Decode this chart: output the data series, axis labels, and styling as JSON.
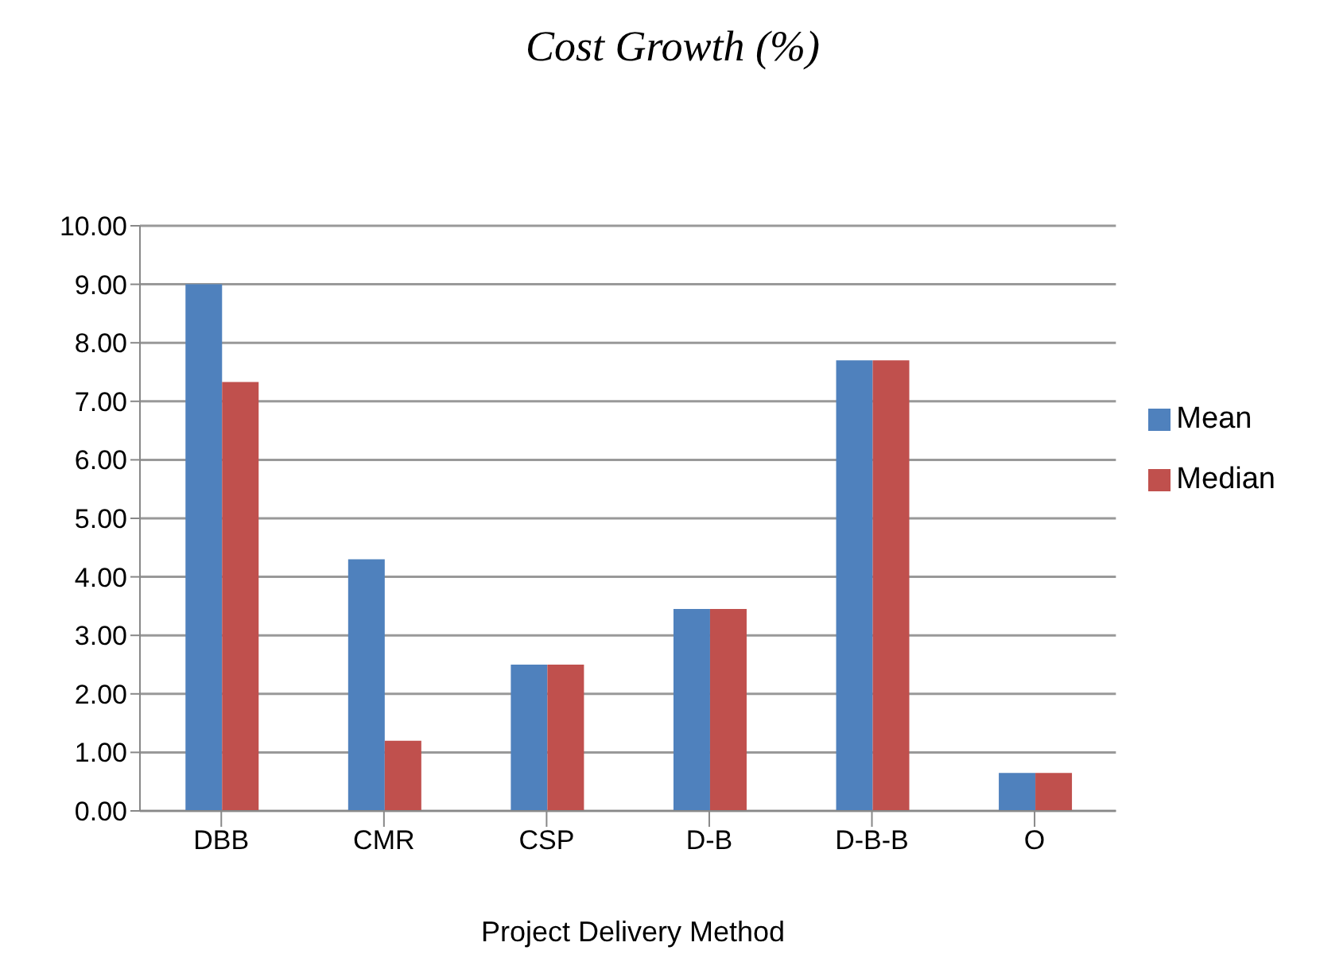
{
  "chart_data": {
    "type": "bar",
    "title": "Cost Growth (%)",
    "xlabel": "Project Delivery Method",
    "categories": [
      "DBB",
      "CMR",
      "CSP",
      "D-B",
      "D-B-B",
      "O"
    ],
    "series": [
      {
        "name": "Mean",
        "color": "#4f81bd",
        "values": [
          9.0,
          4.3,
          2.5,
          3.45,
          7.7,
          0.65
        ]
      },
      {
        "name": "Median",
        "color": "#c0504d",
        "values": [
          7.33,
          1.2,
          2.5,
          3.45,
          7.7,
          0.65
        ]
      }
    ],
    "ylim": [
      0,
      10
    ],
    "yticks": [
      {
        "value": 0,
        "label": "0.00"
      },
      {
        "value": 1,
        "label": "1.00"
      },
      {
        "value": 2,
        "label": "2.00"
      },
      {
        "value": 3,
        "label": "3.00"
      },
      {
        "value": 4,
        "label": "4.00"
      },
      {
        "value": 5,
        "label": "5.00"
      },
      {
        "value": 6,
        "label": "6.00"
      },
      {
        "value": 7,
        "label": "7.00"
      },
      {
        "value": 8,
        "label": "8.00"
      },
      {
        "value": 9,
        "label": "9.00"
      },
      {
        "value": 10,
        "label": "10.00"
      }
    ],
    "grid": "y",
    "legend": "right"
  }
}
